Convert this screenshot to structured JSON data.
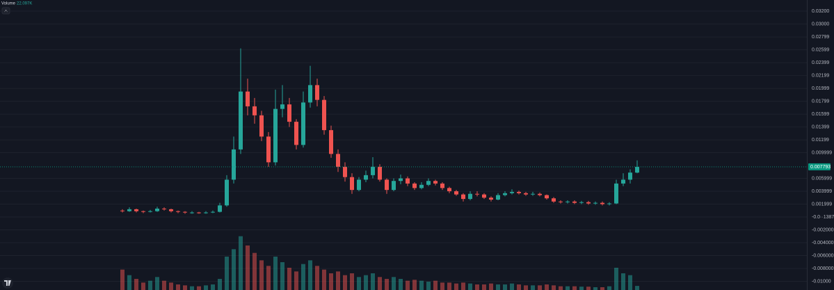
{
  "chart_data": {
    "type": "candlestick",
    "indicator_title": "Volume",
    "indicator_value": "22.097K",
    "up_color": "#26a69a",
    "down_color": "#ef5350",
    "grid": true,
    "ylim": [
      -0.01135,
      0.03373
    ],
    "yticks": [
      {
        "value": 0.032,
        "label": "0.03200"
      },
      {
        "value": 0.03,
        "label": "0.03000"
      },
      0.02799,
      0.02599,
      0.02399,
      0.02199,
      0.01999,
      0.01799,
      0.01599,
      0.01399,
      0.01199,
      0.009999,
      0.005999,
      0.003999,
      0.001999,
      {
        "value": -1.387e-07,
        "label": "-0.0··1387"
      },
      {
        "value": -0.002,
        "label": "-0.002000"
      },
      {
        "value": -0.004,
        "label": "-0.004000"
      },
      {
        "value": -0.006,
        "label": "-0.006000"
      },
      {
        "value": -0.008,
        "label": "-0.008000"
      },
      {
        "value": -0.01,
        "label": "-0.01000"
      }
    ],
    "last_price": 0.007793,
    "last_price_color": "#089981",
    "open": [
      0.001,
      0.0009,
      0.0012,
      0.0009,
      0.0008,
      0.0009,
      0.0013,
      0.0012,
      0.0009,
      0.0008,
      0.0007,
      0.0007,
      0.0006,
      0.0007,
      0.0008,
      0.0018,
      0.0058,
      0.0105,
      0.0195,
      0.0172,
      0.0158,
      0.0125,
      0.0085,
      0.0168,
      0.0175,
      0.0148,
      0.0112,
      0.0178,
      0.0205,
      0.0182,
      0.0135,
      0.0098,
      0.0078,
      0.0062,
      0.0042,
      0.0058,
      0.0065,
      0.0078,
      0.0058,
      0.0042,
      0.0056,
      0.006,
      0.0052,
      0.0045,
      0.005,
      0.0056,
      0.0052,
      0.0045,
      0.004,
      0.0035,
      0.0028,
      0.0036,
      0.0035,
      0.003,
      0.0027,
      0.0034,
      0.0037,
      0.0039,
      0.0037,
      0.0035,
      0.0036,
      0.0034,
      0.0029,
      0.0024,
      0.0023,
      0.0024,
      0.0022,
      0.0023,
      0.0021,
      0.0022,
      0.002,
      0.0021,
      0.0052,
      0.0058,
      0.0069
    ],
    "high": [
      0.0012,
      0.0015,
      0.0013,
      0.001,
      0.0011,
      0.0016,
      0.0015,
      0.0013,
      0.001,
      0.0009,
      0.0009,
      0.0008,
      0.0009,
      0.001,
      0.0022,
      0.0065,
      0.0125,
      0.0262,
      0.0215,
      0.0185,
      0.0165,
      0.0132,
      0.0198,
      0.0205,
      0.0185,
      0.0152,
      0.0195,
      0.0235,
      0.0215,
      0.0188,
      0.0142,
      0.0105,
      0.0085,
      0.0068,
      0.0062,
      0.0072,
      0.0093,
      0.0082,
      0.006,
      0.006,
      0.0066,
      0.0063,
      0.0054,
      0.0054,
      0.006,
      0.0058,
      0.0054,
      0.0047,
      0.0042,
      0.0037,
      0.004,
      0.004,
      0.0037,
      0.0032,
      0.0037,
      0.004,
      0.0043,
      0.0041,
      0.0039,
      0.0039,
      0.0038,
      0.0035,
      0.0031,
      0.0026,
      0.0026,
      0.0026,
      0.0025,
      0.0025,
      0.0024,
      0.0024,
      0.0023,
      0.0058,
      0.0068,
      0.0074,
      0.0088
    ],
    "low": [
      0.0007,
      0.0008,
      0.0007,
      0.0006,
      0.0007,
      0.0008,
      0.001,
      0.0007,
      0.0006,
      0.0005,
      0.0005,
      0.0005,
      0.0005,
      0.0006,
      0.0007,
      0.0016,
      0.0052,
      0.0098,
      0.0158,
      0.0145,
      0.0118,
      0.0078,
      0.008,
      0.0155,
      0.014,
      0.0105,
      0.0108,
      0.017,
      0.0172,
      0.0128,
      0.0092,
      0.007,
      0.0055,
      0.0036,
      0.004,
      0.0054,
      0.006,
      0.0055,
      0.0036,
      0.004,
      0.0051,
      0.0048,
      0.0042,
      0.0043,
      0.0048,
      0.0049,
      0.0042,
      0.0037,
      0.0033,
      0.0024,
      0.0026,
      0.0032,
      0.0028,
      0.0024,
      0.0026,
      0.0032,
      0.0035,
      0.0035,
      0.0033,
      0.0033,
      0.0032,
      0.0027,
      0.0022,
      0.0021,
      0.0021,
      0.002,
      0.002,
      0.0019,
      0.0019,
      0.0018,
      0.0018,
      0.002,
      0.0048,
      0.0052,
      0.0068
    ],
    "close": [
      0.0009,
      0.0012,
      0.0009,
      0.0008,
      0.0009,
      0.0013,
      0.0012,
      0.0009,
      0.0008,
      0.0007,
      0.0007,
      0.0006,
      0.0007,
      0.0008,
      0.0018,
      0.0058,
      0.0105,
      0.0195,
      0.0172,
      0.0158,
      0.0125,
      0.0085,
      0.0168,
      0.0175,
      0.0148,
      0.0112,
      0.0178,
      0.0205,
      0.0182,
      0.0135,
      0.0098,
      0.0078,
      0.0062,
      0.0042,
      0.0058,
      0.0065,
      0.0078,
      0.0058,
      0.0042,
      0.0056,
      0.006,
      0.0052,
      0.0045,
      0.005,
      0.0056,
      0.0052,
      0.0045,
      0.004,
      0.0035,
      0.0028,
      0.0036,
      0.0035,
      0.003,
      0.0027,
      0.0034,
      0.0037,
      0.0039,
      0.0037,
      0.0035,
      0.0036,
      0.0034,
      0.0029,
      0.0024,
      0.0023,
      0.0024,
      0.0022,
      0.0023,
      0.0021,
      0.0022,
      0.002,
      0.0021,
      0.0052,
      0.0058,
      0.0069,
      0.007793
    ],
    "volume_lim": [
      0,
      300000
    ],
    "volume": [
      110000,
      80000,
      60000,
      40000,
      50000,
      70000,
      50000,
      40000,
      30000,
      25000,
      20000,
      20000,
      25000,
      30000,
      60000,
      180000,
      220000,
      290000,
      240000,
      200000,
      160000,
      130000,
      180000,
      150000,
      120000,
      100000,
      140000,
      160000,
      130000,
      110000,
      90000,
      100000,
      80000,
      90000,
      70000,
      80000,
      90000,
      70000,
      60000,
      70000,
      60000,
      50000,
      55000,
      50000,
      45000,
      50000,
      40000,
      40000,
      35000,
      40000,
      35000,
      30000,
      30000,
      35000,
      30000,
      30000,
      35000,
      30000,
      25000,
      25000,
      25000,
      30000,
      25000,
      20000,
      20000,
      20000,
      18000,
      18000,
      15000,
      15000,
      20000,
      120000,
      90000,
      80000,
      22097
    ]
  }
}
